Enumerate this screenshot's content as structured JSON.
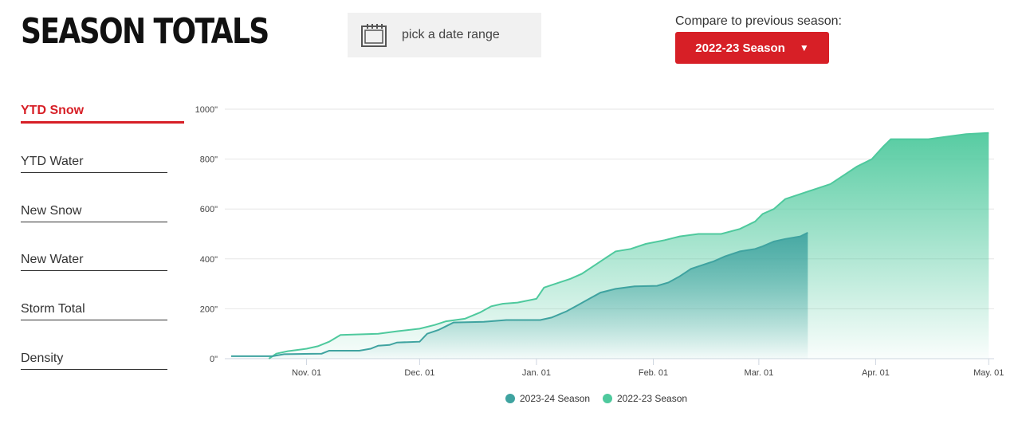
{
  "header": {
    "title": "SEASON TOTALS",
    "date_range_label": "pick a date range",
    "compare_label": "Compare to previous season:",
    "compare_selected": "2022-23 Season"
  },
  "nav": {
    "items": [
      {
        "label": "YTD Snow",
        "active": true
      },
      {
        "label": "YTD Water",
        "active": false
      },
      {
        "label": "New Snow",
        "active": false
      },
      {
        "label": "New Water",
        "active": false
      },
      {
        "label": "Storm Total",
        "active": false
      },
      {
        "label": "Density",
        "active": false
      }
    ]
  },
  "colors": {
    "accent": "#d71f26",
    "current_season": "#3fa3a0",
    "previous_season": "#4ec99d"
  },
  "chart_data": {
    "type": "area",
    "x_axis": {
      "type": "date",
      "ticks": [
        "Nov. 01",
        "Dec. 01",
        "Jan. 01",
        "Feb. 01",
        "Mar. 01",
        "Apr. 01",
        "May. 01"
      ],
      "range": [
        "2022-10-12",
        "2023-05-02"
      ]
    },
    "y_axis": {
      "ticks": [
        "0\"",
        "200\"",
        "400\"",
        "600\"",
        "800\"",
        "1000\""
      ],
      "range": [
        0,
        1000
      ]
    },
    "grid": true,
    "legend": "bottom-center",
    "series": [
      {
        "name": "2023-24 Season",
        "color": "#3fa3a0",
        "points": [
          [
            "Oct-12",
            10
          ],
          [
            "Oct-23",
            10
          ],
          [
            "Oct-26",
            18
          ],
          [
            "Nov-05",
            20
          ],
          [
            "Nov-07",
            32
          ],
          [
            "Nov-15",
            32
          ],
          [
            "Nov-18",
            40
          ],
          [
            "Nov-20",
            52
          ],
          [
            "Nov-23",
            55
          ],
          [
            "Nov-25",
            65
          ],
          [
            "Dec-01",
            68
          ],
          [
            "Dec-03",
            100
          ],
          [
            "Dec-06",
            115
          ],
          [
            "Dec-08",
            130
          ],
          [
            "Dec-10",
            145
          ],
          [
            "Dec-18",
            148
          ],
          [
            "Dec-24",
            155
          ],
          [
            "Jan-02",
            155
          ],
          [
            "Jan-05",
            165
          ],
          [
            "Jan-09",
            190
          ],
          [
            "Jan-12",
            215
          ],
          [
            "Jan-15",
            240
          ],
          [
            "Jan-18",
            265
          ],
          [
            "Jan-22",
            280
          ],
          [
            "Jan-27",
            290
          ],
          [
            "Feb-02",
            292
          ],
          [
            "Feb-05",
            305
          ],
          [
            "Feb-08",
            330
          ],
          [
            "Feb-11",
            360
          ],
          [
            "Feb-14",
            375
          ],
          [
            "Feb-17",
            390
          ],
          [
            "Feb-20",
            410
          ],
          [
            "Feb-24",
            430
          ],
          [
            "Feb-28",
            440
          ],
          [
            "Mar-02",
            450
          ],
          [
            "Mar-05",
            470
          ],
          [
            "Mar-08",
            480
          ],
          [
            "Mar-12",
            490
          ],
          [
            "Mar-14",
            505
          ]
        ]
      },
      {
        "name": "2022-23 Season",
        "color": "#4ec99d",
        "points": [
          [
            "Oct-22",
            0
          ],
          [
            "Oct-24",
            20
          ],
          [
            "Oct-27",
            30
          ],
          [
            "Nov-01",
            40
          ],
          [
            "Nov-04",
            50
          ],
          [
            "Nov-07",
            68
          ],
          [
            "Nov-10",
            95
          ],
          [
            "Nov-20",
            100
          ],
          [
            "Nov-25",
            110
          ],
          [
            "Dec-01",
            120
          ],
          [
            "Dec-05",
            135
          ],
          [
            "Dec-08",
            150
          ],
          [
            "Dec-13",
            160
          ],
          [
            "Dec-17",
            185
          ],
          [
            "Dec-20",
            210
          ],
          [
            "Dec-23",
            220
          ],
          [
            "Dec-27",
            225
          ],
          [
            "Jan-01",
            240
          ],
          [
            "Jan-03",
            285
          ],
          [
            "Jan-06",
            300
          ],
          [
            "Jan-10",
            320
          ],
          [
            "Jan-13",
            340
          ],
          [
            "Jan-16",
            370
          ],
          [
            "Jan-19",
            400
          ],
          [
            "Jan-22",
            430
          ],
          [
            "Jan-26",
            440
          ],
          [
            "Jan-30",
            460
          ],
          [
            "Feb-04",
            475
          ],
          [
            "Feb-08",
            490
          ],
          [
            "Feb-13",
            500
          ],
          [
            "Feb-19",
            500
          ],
          [
            "Feb-24",
            520
          ],
          [
            "Feb-28",
            550
          ],
          [
            "Mar-02",
            580
          ],
          [
            "Mar-05",
            600
          ],
          [
            "Mar-08",
            640
          ],
          [
            "Mar-12",
            660
          ],
          [
            "Mar-16",
            680
          ],
          [
            "Mar-20",
            700
          ],
          [
            "Mar-24",
            740
          ],
          [
            "Mar-27",
            770
          ],
          [
            "Mar-31",
            800
          ],
          [
            "Apr-03",
            850
          ],
          [
            "Apr-05",
            880
          ],
          [
            "Apr-10",
            880
          ],
          [
            "Apr-15",
            880
          ],
          [
            "Apr-20",
            890
          ],
          [
            "Apr-25",
            900
          ],
          [
            "May-01",
            905
          ]
        ]
      }
    ]
  }
}
